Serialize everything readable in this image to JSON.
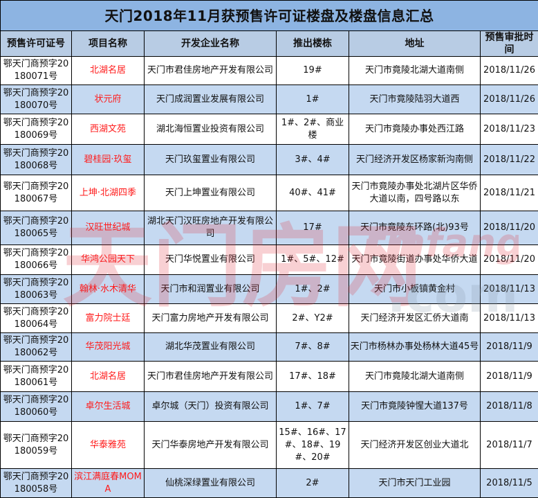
{
  "title": "天门2018年11月获预售许可证楼盘及楼盘信息汇总",
  "colors": {
    "title_bg": "#8db4e2",
    "header_bg": "#b8cce4",
    "alt_row_bg": "#c5d9f1",
    "project_name": "#ff1a1a"
  },
  "columns": [
    "预售许可证号",
    "项目名称",
    "开发企业名称",
    "推出楼栋",
    "地址",
    "预售审批时间"
  ],
  "rows": [
    {
      "permit": "鄂天门商预字20180071号",
      "name": "北湖名居",
      "developer": "天门市君佳房地产开发有限公司",
      "buildings": "19#",
      "address": "天门市竟陵北湖大道南侧",
      "date": "2018/11/26"
    },
    {
      "permit": "鄂天门商预字20180070号",
      "name": "状元府",
      "developer": "天门成润置业发展有限公司",
      "buildings": "1#",
      "address": "天门市竟陵陆羽大道西",
      "date": "2018/11/26"
    },
    {
      "permit": "鄂天门商预字20180069号",
      "name": "西湖文苑",
      "developer": "湖北海恒置业投资有限公司",
      "buildings": "1#、2#、商业楼",
      "address": "天门市竟陵办事处西江路",
      "date": "2018/11/23"
    },
    {
      "permit": "鄂天门商预字20180068号",
      "name": "碧桂园·玖玺",
      "developer": "天门玖玺置业有限公司",
      "buildings": "3#、4#",
      "address": "天门经济开发区杨家新沟南侧",
      "date": "2018/11/22"
    },
    {
      "permit": "鄂天门商预字20180067号",
      "name": "上坤·北湖四季",
      "developer": "天门上坤置业有限公司",
      "buildings": "40#、41#",
      "address": "天门市竟陵办事处北湖片区华侨大道以南，四号路以东",
      "date": "2018/11/21"
    },
    {
      "permit": "鄂天门商预字20180065号",
      "name": "汉旺世纪城",
      "developer": "湖北天门汉旺房地产开发有限公司",
      "buildings": "17#",
      "address": "天门市竟陵东环路(北)93号",
      "date": "2018/11/20"
    },
    {
      "permit": "鄂天门商预字20180066号",
      "name": "华鸿公园天下",
      "developer": "天门华悦置业有限公司",
      "buildings": "1#、5#、12#",
      "address": "天门市竟陵街道办事处华侨大道",
      "date": "2018/11/20"
    },
    {
      "permit": "鄂天门商预字20180063号",
      "name": "翰林·水木清华",
      "developer": "天门市和润置业有限公司",
      "buildings": "1#、2#",
      "address": "天门市小板镇黄金村",
      "date": "2018/11/13"
    },
    {
      "permit": "鄂天门商预字20180064号",
      "name": "富力院士廷",
      "developer": "天门富力房地产开发有限公司",
      "buildings": "2#、Y2#",
      "address": "天门经济开发区汇侨大道南",
      "date": "2018/11/13"
    },
    {
      "permit": "鄂天门商预字20180062号",
      "name": "华茂阳光城",
      "developer": "湖北华茂置业有限公司",
      "buildings": "7#、8#",
      "address": "天门市杨林办事处杨林大道45号",
      "date": "2018/11/9"
    },
    {
      "permit": "鄂天门商预字20180061号",
      "name": "北湖名居",
      "developer": "天门市君佳房地产开发有限公司",
      "buildings": "17#、18#",
      "address": "天门市竟陵北湖大道南侧",
      "date": "2018/11/9"
    },
    {
      "permit": "鄂天门商预字20180060号",
      "name": "卓尔生活城",
      "developer": "卓尔城（天门）投资有限公司",
      "buildings": "1#、7#",
      "address": "天门市竟陵钟惺大道137号",
      "date": "2018/11/8"
    },
    {
      "permit": "鄂天门商预字20180059号",
      "name": "华泰雅苑",
      "developer": "天门华泰房地产开发有限公司",
      "buildings": "15#、16#、17#、18#、19#、20#",
      "address": "天门经济开发区创业大道北",
      "date": "2018/11/7"
    },
    {
      "permit": "鄂天门商预字20180058号",
      "name": "滨江满庭春MOMA",
      "developer": "仙桃深绿置业有限公司",
      "buildings": "2#",
      "address": "天门市天门工业园",
      "date": "2018/11/5"
    }
  ],
  "watermark": {
    "cn": "天门房网",
    "en": "tmfang",
    "suffix": ".com"
  }
}
